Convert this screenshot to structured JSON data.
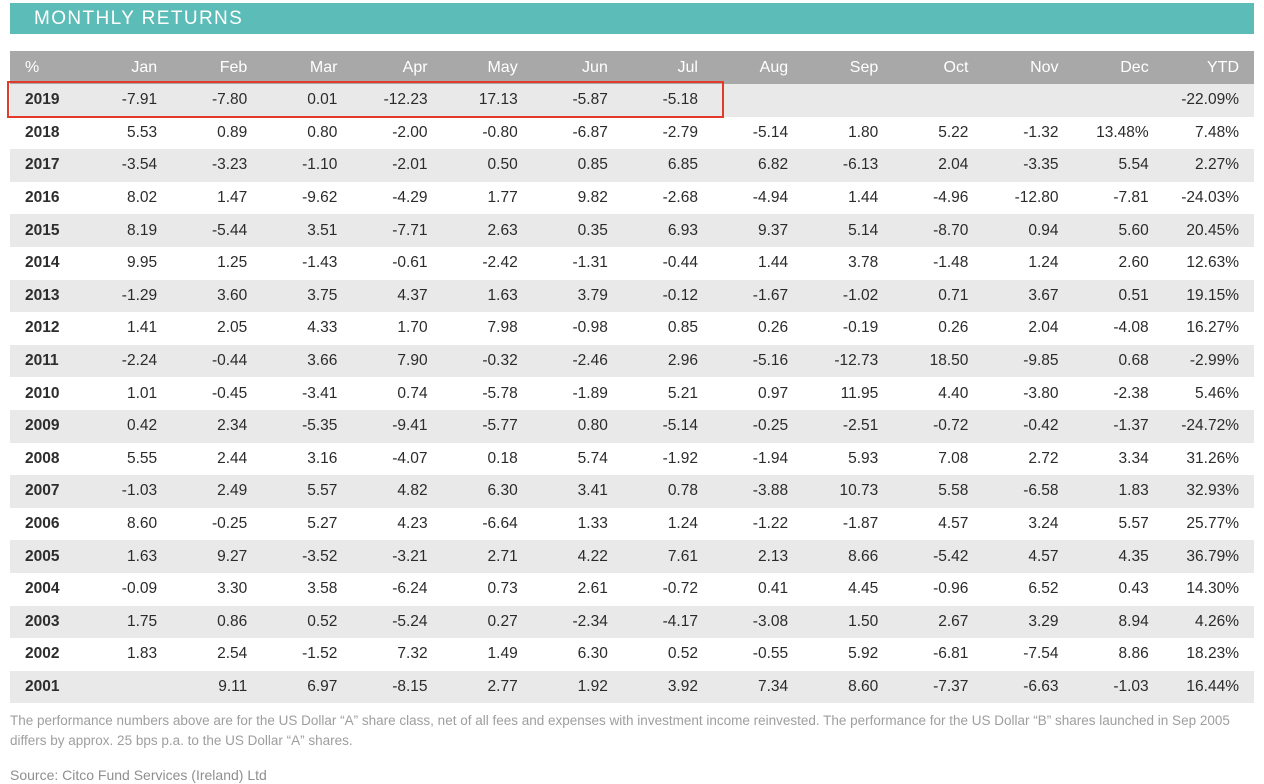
{
  "title": "MONTHLY RETURNS",
  "footnote": "The performance numbers above are for the US Dollar “A” share class, net of all fees and expenses with investment income reinvested. The performance for the US Dollar “B” shares launched in Sep 2005 differs by approx. 25 bps p.a. to the US Dollar “A” shares.",
  "source": "Source: Citco Fund Services (Ireland) Ltd",
  "colors": {
    "accent_teal": "#5cbdb8",
    "header_gray": "#a8a8a8",
    "alt_row_gray": "#e9e9e9",
    "highlight_red": "#e23b2c"
  },
  "chart_data": {
    "type": "table",
    "title": "MONTHLY RETURNS",
    "columns": [
      "%",
      "Jan",
      "Feb",
      "Mar",
      "Apr",
      "May",
      "Jun",
      "Jul",
      "Aug",
      "Sep",
      "Oct",
      "Nov",
      "Dec",
      "YTD"
    ],
    "rows": [
      {
        "year": "2019",
        "values": [
          "-7.91",
          "-7.80",
          "0.01",
          "-12.23",
          "17.13",
          "-5.87",
          "-5.18",
          "",
          "",
          "",
          "",
          ""
        ],
        "ytd": "-22.09%",
        "highlight": true
      },
      {
        "year": "2018",
        "values": [
          "5.53",
          "0.89",
          "0.80",
          "-2.00",
          "-0.80",
          "-6.87",
          "-2.79",
          "-5.14",
          "1.80",
          "5.22",
          "-1.32",
          "13.48%"
        ],
        "ytd": "7.48%",
        "highlight": false
      },
      {
        "year": "2017",
        "values": [
          "-3.54",
          "-3.23",
          "-1.10",
          "-2.01",
          "0.50",
          "0.85",
          "6.85",
          "6.82",
          "-6.13",
          "2.04",
          "-3.35",
          "5.54"
        ],
        "ytd": "2.27%",
        "highlight": false
      },
      {
        "year": "2016",
        "values": [
          "8.02",
          "1.47",
          "-9.62",
          "-4.29",
          "1.77",
          "9.82",
          "-2.68",
          "-4.94",
          "1.44",
          "-4.96",
          "-12.80",
          "-7.81"
        ],
        "ytd": "-24.03%",
        "highlight": false
      },
      {
        "year": "2015",
        "values": [
          "8.19",
          "-5.44",
          "3.51",
          "-7.71",
          "2.63",
          "0.35",
          "6.93",
          "9.37",
          "5.14",
          "-8.70",
          "0.94",
          "5.60"
        ],
        "ytd": "20.45%",
        "highlight": false
      },
      {
        "year": "2014",
        "values": [
          "9.95",
          "1.25",
          "-1.43",
          "-0.61",
          "-2.42",
          "-1.31",
          "-0.44",
          "1.44",
          "3.78",
          "-1.48",
          "1.24",
          "2.60"
        ],
        "ytd": "12.63%",
        "highlight": false
      },
      {
        "year": "2013",
        "values": [
          "-1.29",
          "3.60",
          "3.75",
          "4.37",
          "1.63",
          "3.79",
          "-0.12",
          "-1.67",
          "-1.02",
          "0.71",
          "3.67",
          "0.51"
        ],
        "ytd": "19.15%",
        "highlight": false
      },
      {
        "year": "2012",
        "values": [
          "1.41",
          "2.05",
          "4.33",
          "1.70",
          "7.98",
          "-0.98",
          "0.85",
          "0.26",
          "-0.19",
          "0.26",
          "2.04",
          "-4.08"
        ],
        "ytd": "16.27%",
        "highlight": false
      },
      {
        "year": "2011",
        "values": [
          "-2.24",
          "-0.44",
          "3.66",
          "7.90",
          "-0.32",
          "-2.46",
          "2.96",
          "-5.16",
          "-12.73",
          "18.50",
          "-9.85",
          "0.68"
        ],
        "ytd": "-2.99%",
        "highlight": false
      },
      {
        "year": "2010",
        "values": [
          "1.01",
          "-0.45",
          "-3.41",
          "0.74",
          "-5.78",
          "-1.89",
          "5.21",
          "0.97",
          "11.95",
          "4.40",
          "-3.80",
          "-2.38"
        ],
        "ytd": "5.46%",
        "highlight": false
      },
      {
        "year": "2009",
        "values": [
          "0.42",
          "2.34",
          "-5.35",
          "-9.41",
          "-5.77",
          "0.80",
          "-5.14",
          "-0.25",
          "-2.51",
          "-0.72",
          "-0.42",
          "-1.37"
        ],
        "ytd": "-24.72%",
        "highlight": false
      },
      {
        "year": "2008",
        "values": [
          "5.55",
          "2.44",
          "3.16",
          "-4.07",
          "0.18",
          "5.74",
          "-1.92",
          "-1.94",
          "5.93",
          "7.08",
          "2.72",
          "3.34"
        ],
        "ytd": "31.26%",
        "highlight": false
      },
      {
        "year": "2007",
        "values": [
          "-1.03",
          "2.49",
          "5.57",
          "4.82",
          "6.30",
          "3.41",
          "0.78",
          "-3.88",
          "10.73",
          "5.58",
          "-6.58",
          "1.83"
        ],
        "ytd": "32.93%",
        "highlight": false
      },
      {
        "year": "2006",
        "values": [
          "8.60",
          "-0.25",
          "5.27",
          "4.23",
          "-6.64",
          "1.33",
          "1.24",
          "-1.22",
          "-1.87",
          "4.57",
          "3.24",
          "5.57"
        ],
        "ytd": "25.77%",
        "highlight": false
      },
      {
        "year": "2005",
        "values": [
          "1.63",
          "9.27",
          "-3.52",
          "-3.21",
          "2.71",
          "4.22",
          "7.61",
          "2.13",
          "8.66",
          "-5.42",
          "4.57",
          "4.35"
        ],
        "ytd": "36.79%",
        "highlight": false
      },
      {
        "year": "2004",
        "values": [
          "-0.09",
          "3.30",
          "3.58",
          "-6.24",
          "0.73",
          "2.61",
          "-0.72",
          "0.41",
          "4.45",
          "-0.96",
          "6.52",
          "0.43"
        ],
        "ytd": "14.30%",
        "highlight": false
      },
      {
        "year": "2003",
        "values": [
          "1.75",
          "0.86",
          "0.52",
          "-5.24",
          "0.27",
          "-2.34",
          "-4.17",
          "-3.08",
          "1.50",
          "2.67",
          "3.29",
          "8.94"
        ],
        "ytd": "4.26%",
        "highlight": false
      },
      {
        "year": "2002",
        "values": [
          "1.83",
          "2.54",
          "-1.52",
          "7.32",
          "1.49",
          "6.30",
          "0.52",
          "-0.55",
          "5.92",
          "-6.81",
          "-7.54",
          "8.86"
        ],
        "ytd": "18.23%",
        "highlight": false
      },
      {
        "year": "2001",
        "values": [
          "",
          "9.11",
          "6.97",
          "-8.15",
          "2.77",
          "1.92",
          "3.92",
          "7.34",
          "8.60",
          "-7.37",
          "-6.63",
          "-1.03"
        ],
        "ytd": "16.44%",
        "highlight": false
      }
    ],
    "highlight": {
      "row": "2019",
      "from_column": "%",
      "to_column": "Jul",
      "border_color": "#e23b2c"
    },
    "layout": {
      "alt_row_shading": true,
      "header_background": "#a8a8a8",
      "title_bar_background": "#5cbdb8"
    }
  }
}
